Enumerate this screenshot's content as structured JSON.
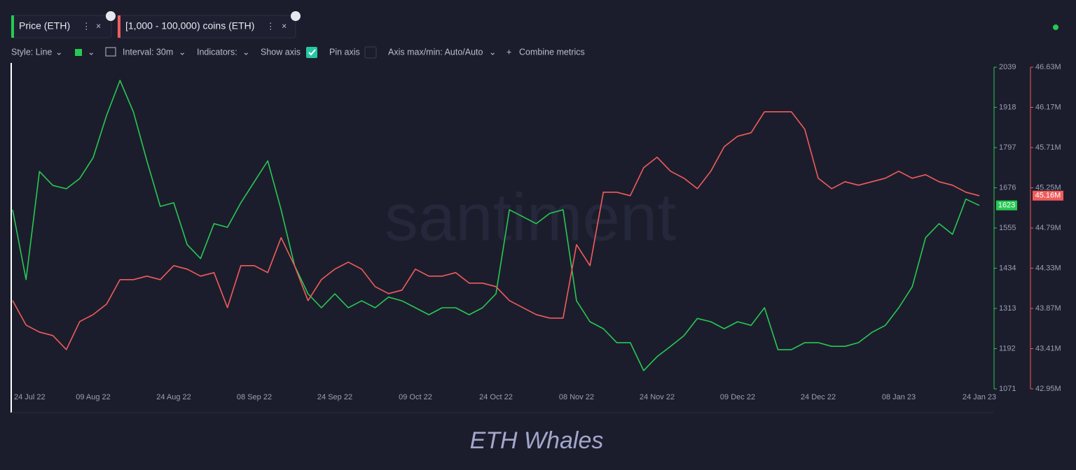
{
  "toolbar": {
    "style": "Style: Line",
    "interval": "Interval: 30m",
    "indicators": "Indicators:",
    "show_axis": "Show axis",
    "pin_axis": "Pin axis",
    "axis_maxmin": "Axis max/min: Auto/Auto",
    "combine": "Combine metrics"
  },
  "watermark": "santiment",
  "caption": "ETH Whales",
  "chart_data": {
    "type": "line",
    "categories": [
      "24 Jul 22",
      null,
      null,
      null,
      null,
      null,
      "09 Aug 22",
      null,
      null,
      null,
      null,
      null,
      "24 Aug 22",
      null,
      null,
      null,
      null,
      null,
      "08 Sep 22",
      null,
      null,
      null,
      null,
      null,
      "24 Sep 22",
      null,
      null,
      null,
      null,
      null,
      "09 Oct 22",
      null,
      null,
      null,
      null,
      null,
      "24 Oct 22",
      null,
      null,
      null,
      null,
      null,
      "08 Nov 22",
      null,
      null,
      null,
      null,
      null,
      "24 Nov 22",
      null,
      null,
      null,
      null,
      null,
      "09 Dec 22",
      null,
      null,
      null,
      null,
      null,
      "24 Dec 22",
      null,
      null,
      null,
      null,
      null,
      "08 Jan 23",
      null,
      null,
      null,
      null,
      null,
      "24 Jan 23"
    ],
    "series": [
      {
        "name": "Price (ETH)",
        "color": "#26c953",
        "axis": "y",
        "last_value": 1623,
        "values": [
          1610,
          1400,
          1725,
          1683,
          1673,
          1704,
          1767,
          1894,
          1999,
          1904,
          1757,
          1620,
          1631,
          1505,
          1463,
          1568,
          1557,
          1631,
          1694,
          1757,
          1610,
          1442,
          1357,
          1315,
          1357,
          1315,
          1336,
          1315,
          1347,
          1336,
          1315,
          1294,
          1315,
          1315,
          1294,
          1315,
          1357,
          1610,
          1589,
          1568,
          1599,
          1610,
          1336,
          1273,
          1252,
          1210,
          1210,
          1126,
          1168,
          1199,
          1231,
          1283,
          1273,
          1252,
          1273,
          1262,
          1315,
          1189,
          1189,
          1210,
          1210,
          1199,
          1199,
          1210,
          1241,
          1262,
          1315,
          1378,
          1526,
          1568,
          1536,
          1642,
          1623
        ]
      },
      {
        "name": "[1,000 - 100,000) coins (ETH)",
        "color": "#f05c5c",
        "axis": "y2",
        "last_value": 45160000,
        "last_value_label": "45.16M",
        "values": [
          43960000,
          43680000,
          43600000,
          43560000,
          43400000,
          43720000,
          43800000,
          43920000,
          44200000,
          44200000,
          44240000,
          44200000,
          44360000,
          44320000,
          44240000,
          44280000,
          43880000,
          44360000,
          44360000,
          44280000,
          44680000,
          44360000,
          43960000,
          44200000,
          44320000,
          44400000,
          44320000,
          44120000,
          44040000,
          44080000,
          44320000,
          44240000,
          44240000,
          44280000,
          44160000,
          44160000,
          44120000,
          43960000,
          43880000,
          43800000,
          43760000,
          43760000,
          44600000,
          44360000,
          45200000,
          45200000,
          45160000,
          45480000,
          45600000,
          45440000,
          45360000,
          45240000,
          45440000,
          45720000,
          45840000,
          45880000,
          46120000,
          46120000,
          46120000,
          45920000,
          45360000,
          45240000,
          45320000,
          45280000,
          45320000,
          45360000,
          45440000,
          45360000,
          45400000,
          45320000,
          45280000,
          45200000,
          45160000
        ]
      }
    ],
    "ylim": [
      1071,
      2039
    ],
    "yticks": [
      1071,
      1192,
      1313,
      1434,
      1555,
      1676,
      1797,
      1918,
      2039
    ],
    "y2lim": [
      42950000,
      46630000
    ],
    "y2ticks": [
      {
        "value": 42950000,
        "label": "42.95M"
      },
      {
        "value": 43410000,
        "label": "43.41M"
      },
      {
        "value": 43870000,
        "label": "43.87M"
      },
      {
        "value": 44330000,
        "label": "44.33M"
      },
      {
        "value": 44790000,
        "label": "44.79M"
      },
      {
        "value": 45250000,
        "label": "45.25M"
      },
      {
        "value": 45710000,
        "label": "45.71M"
      },
      {
        "value": 46170000,
        "label": "46.17M"
      },
      {
        "value": 46630000,
        "label": "46.63M"
      }
    ],
    "grid": false
  }
}
